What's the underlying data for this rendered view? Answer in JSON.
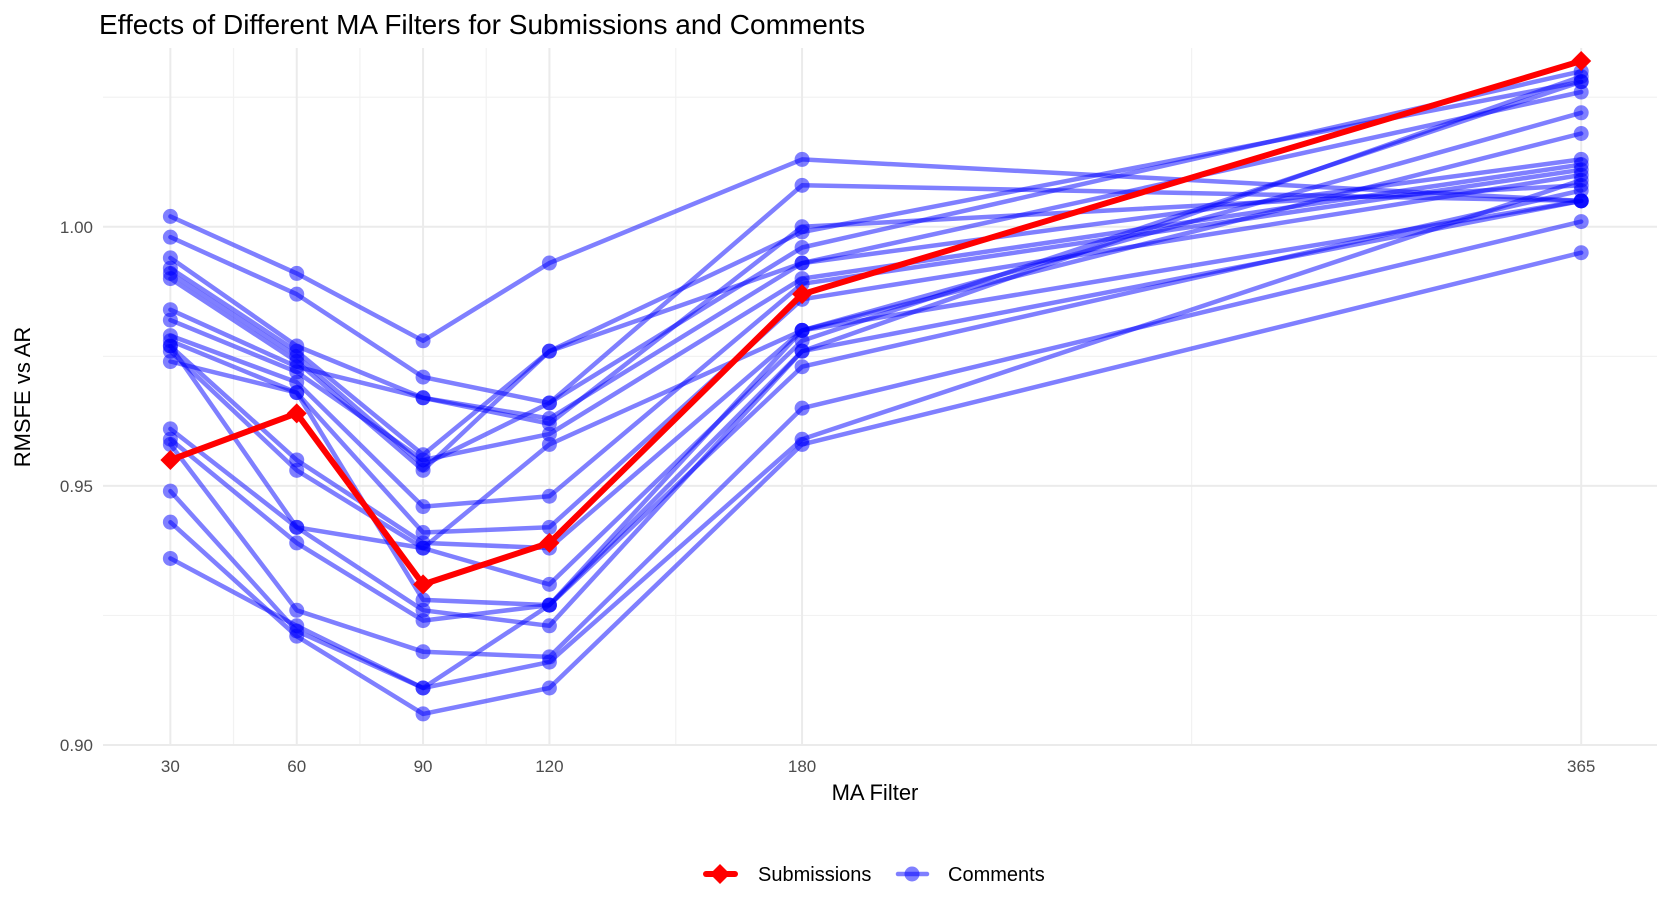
{
  "chart_data": {
    "type": "line",
    "title": "Effects of Different MA Filters for Submissions and Comments",
    "xlabel": "MA Filter",
    "ylabel": "RMSFE vs AR",
    "x": [
      30,
      60,
      90,
      120,
      180,
      365
    ],
    "xlim": [
      14,
      383
    ],
    "ylim": [
      0.9,
      1.0345
    ],
    "y_ticks": [
      0.9,
      0.95,
      1.0
    ],
    "y_tick_labels": [
      "0.90",
      "0.95",
      "1.00"
    ],
    "x_tick_labels": [
      "30",
      "60",
      "90",
      "120",
      "180",
      "365"
    ],
    "grid": true,
    "legend_position": "bottom",
    "colors": {
      "Submissions": "#ff0000",
      "Comments": "#0000ff"
    },
    "series": [
      {
        "name": "Submissions",
        "values": [
          0.955,
          0.964,
          0.931,
          0.939,
          0.987,
          1.032
        ]
      },
      {
        "group": "Comments",
        "values": [
          1.002,
          0.991,
          0.978,
          0.993,
          1.013,
          1.005
        ]
      },
      {
        "group": "Comments",
        "values": [
          0.998,
          0.987,
          0.971,
          0.966,
          1.008,
          1.005
        ]
      },
      {
        "group": "Comments",
        "values": [
          0.994,
          0.977,
          0.967,
          0.962,
          1.0,
          1.008
        ]
      },
      {
        "group": "Comments",
        "values": [
          0.992,
          0.976,
          0.956,
          0.976,
          0.999,
          1.028
        ]
      },
      {
        "group": "Comments",
        "values": [
          0.991,
          0.975,
          0.954,
          0.966,
          0.996,
          1.03
        ]
      },
      {
        "group": "Comments",
        "values": [
          0.99,
          0.974,
          0.953,
          0.976,
          0.993,
          1.026
        ]
      },
      {
        "group": "Comments",
        "values": [
          0.984,
          0.973,
          0.967,
          0.963,
          0.993,
          1.013
        ]
      },
      {
        "group": "Comments",
        "values": [
          0.982,
          0.972,
          0.955,
          0.96,
          0.99,
          1.012
        ]
      },
      {
        "group": "Comments",
        "values": [
          0.979,
          0.97,
          0.946,
          0.948,
          0.989,
          1.011
        ]
      },
      {
        "group": "Comments",
        "values": [
          0.978,
          0.968,
          0.941,
          0.942,
          0.986,
          1.01
        ]
      },
      {
        "group": "Comments",
        "values": [
          0.977,
          0.955,
          0.939,
          0.938,
          0.98,
          1.018
        ]
      },
      {
        "group": "Comments",
        "values": [
          0.977,
          0.942,
          0.938,
          0.958,
          0.98,
          1.022
        ]
      },
      {
        "group": "Comments",
        "values": [
          0.976,
          0.953,
          0.938,
          0.931,
          0.978,
          1.028
        ]
      },
      {
        "group": "Comments",
        "values": [
          0.974,
          0.968,
          0.928,
          0.927,
          0.976,
          1.029
        ]
      },
      {
        "group": "Comments",
        "values": [
          0.961,
          0.942,
          0.926,
          0.923,
          0.976,
          1.005
        ]
      },
      {
        "group": "Comments",
        "values": [
          0.959,
          0.939,
          0.924,
          0.927,
          0.973,
          1.007
        ]
      },
      {
        "group": "Comments",
        "values": [
          0.958,
          0.926,
          0.918,
          0.917,
          0.965,
          1.001
        ]
      },
      {
        "group": "Comments",
        "values": [
          0.949,
          0.922,
          0.911,
          0.916,
          0.959,
          1.009
        ]
      },
      {
        "group": "Comments",
        "values": [
          0.943,
          0.921,
          0.906,
          0.911,
          0.958,
          0.995
        ]
      },
      {
        "group": "Comments",
        "values": [
          0.936,
          0.923,
          0.911,
          0.927,
          0.98,
          1.005
        ]
      }
    ]
  }
}
